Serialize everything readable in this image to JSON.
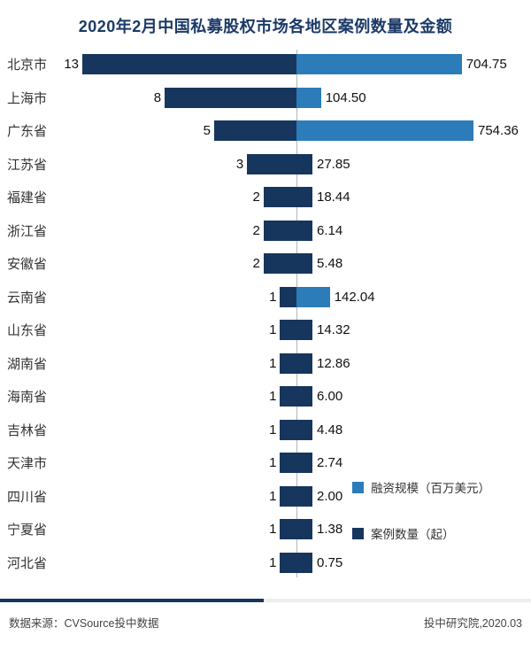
{
  "title": "2020年2月中国私募股权市场各地区案例数量及金额",
  "chart_data": {
    "type": "bar",
    "orientation": "diverging-horizontal",
    "title": "2020年2月中国私募股权市场各地区案例数量及金额",
    "center_axis": true,
    "grid": false,
    "legend_position": "right-middle",
    "categories": [
      "北京市",
      "上海市",
      "广东省",
      "江苏省",
      "福建省",
      "浙江省",
      "安徽省",
      "云南省",
      "山东省",
      "湖南省",
      "海南省",
      "吉林省",
      "天津市",
      "四川省",
      "宁夏省",
      "河北省"
    ],
    "series": [
      {
        "name": "案例数量（起）",
        "side": "left",
        "color": "#17365d",
        "axis_max": 13,
        "values": [
          13,
          8,
          5,
          3,
          2,
          2,
          2,
          1,
          1,
          1,
          1,
          1,
          1,
          1,
          1,
          1
        ]
      },
      {
        "name": "融资规模（百万美元）",
        "side": "right",
        "color": "#2b7cb9",
        "axis_max": 754.36,
        "values": [
          704.75,
          104.5,
          754.36,
          27.85,
          18.44,
          6.14,
          5.48,
          142.04,
          14.32,
          12.86,
          6.0,
          4.48,
          2.74,
          2.0,
          1.38,
          0.75
        ]
      }
    ],
    "count_labels": [
      "13",
      "8",
      "5",
      "3",
      "2",
      "2",
      "2",
      "1",
      "1",
      "1",
      "1",
      "1",
      "1",
      "1",
      "1",
      "1"
    ],
    "amount_labels": [
      "704.75",
      "104.50",
      "754.36",
      "27.85",
      "18.44",
      "6.14",
      "5.48",
      "142.04",
      "14.32",
      "12.86",
      "6.00",
      "4.48",
      "2.74",
      "2.00",
      "1.38",
      "0.75"
    ]
  },
  "legend": [
    {
      "label": "融资规模（百万美元）",
      "color": "#2b7cb9"
    },
    {
      "label": "案例数量（起）",
      "color": "#17365d"
    }
  ],
  "footer": {
    "source": "数据来源：CVSource投中数据",
    "credit": "投中研究院,2020.03"
  }
}
